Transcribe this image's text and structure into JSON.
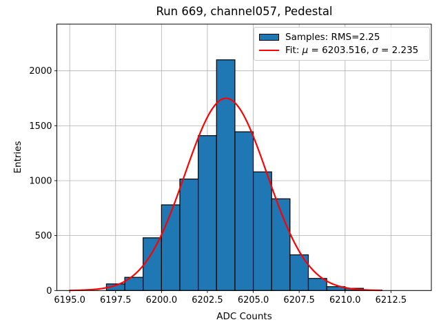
{
  "figure": {
    "title": "Run 669, channel057, Pedestal"
  },
  "axes": {
    "xlabel": "ADC Counts",
    "ylabel": "Entries"
  },
  "legend": {
    "samples_label": "Samples: RMS=2.25",
    "fit_prefix": "Fit: ",
    "fit_mu_symbol": "μ",
    "fit_mu_value": " = 6203.516, ",
    "fit_sigma_symbol": "σ",
    "fit_sigma_value": " = 2.235"
  },
  "chart_data": {
    "type": "bar",
    "subtype": "histogram",
    "title": "Run 669, channel057, Pedestal",
    "xlabel": "ADC Counts",
    "ylabel": "Entries",
    "xlim": [
      6194.3,
      6214.7
    ],
    "ylim": [
      0,
      2425
    ],
    "grid": true,
    "legend_position": "upper right",
    "bin_width": 1,
    "bin_left_edges": [
      6197,
      6198,
      6199,
      6200,
      6201,
      6202,
      6203,
      6204,
      6205,
      6206,
      6207,
      6208,
      6209,
      6210,
      6211
    ],
    "counts": [
      60,
      120,
      480,
      780,
      1015,
      1410,
      2100,
      1445,
      1080,
      835,
      325,
      110,
      35,
      20,
      5
    ],
    "xticks": [
      "6195.0",
      "6197.5",
      "6200.0",
      "6202.5",
      "6205.0",
      "6207.5",
      "6210.0",
      "6212.5"
    ],
    "yticks": [
      "0",
      "500",
      "1000",
      "1500",
      "2000"
    ],
    "fit_curve": {
      "type": "gaussian",
      "mu": 6203.516,
      "sigma": 2.235,
      "amplitude": 1750,
      "x_start": 6195.0,
      "x_end": 6212.0
    },
    "series": [
      {
        "name": "Samples: RMS=2.25",
        "type": "histogram",
        "color": "#1f77b4"
      },
      {
        "name": "Fit: μ = 6203.516, σ = 2.235",
        "type": "line",
        "color": "#ff0000"
      }
    ],
    "colors": {
      "bar_fill": "#1f77b4",
      "bar_edge": "#000000",
      "fit_line": "#ff0000",
      "grid": "#b0b0b0",
      "axis": "#000000"
    }
  }
}
